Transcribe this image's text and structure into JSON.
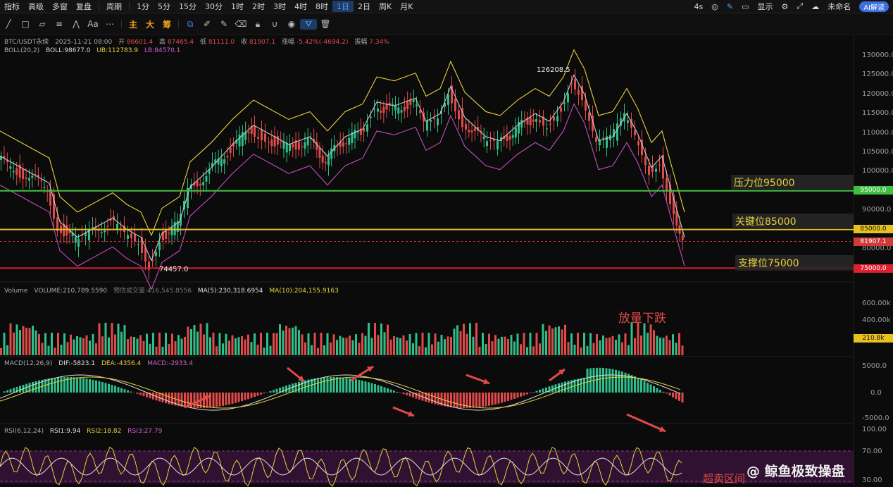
{
  "toolbar": {
    "items": [
      "指标",
      "高级",
      "多窗",
      "复盘",
      "周期",
      "1分",
      "5分",
      "15分",
      "30分",
      "1时",
      "2时",
      "3时",
      "4时",
      "8时",
      "1日",
      "2日",
      "周K",
      "月K"
    ],
    "active": "1日",
    "right": {
      "timer": "4s",
      "display": "显示",
      "unnamed": "未命名",
      "ai": "AI解读"
    }
  },
  "drawbar": {
    "labels": [
      "主",
      "大",
      "筹"
    ],
    "aa": "Aa"
  },
  "header": {
    "symbol": "BTC/USDT永续",
    "datetime": "2025-11-21 08:00",
    "open_label": "开",
    "open": "86601.4",
    "high_label": "高",
    "high": "87465.4",
    "low_label": "低",
    "low": "81111.0",
    "close_label": "收",
    "close": "81907.1",
    "change_label": "涨幅",
    "change": "-5.42%(-4694.2)",
    "amp_label": "振幅",
    "amp": "7.34%"
  },
  "boll": {
    "name": "BOLL(20,2)",
    "mid": "BOLL:98677.0",
    "ub": "UB:112783.9",
    "lb": "LB:84570.1"
  },
  "price_axis": [
    "130000.0",
    "125000.0",
    "120000.0",
    "115000.0",
    "110000.0",
    "105000.0",
    "100000.0",
    "95000.0",
    "90000.0",
    "85000.0",
    "80000.0"
  ],
  "annotations": {
    "high_mark": "126208.5",
    "low_mark": "74457.0",
    "resistance": "压力位95000",
    "key": "关键位85000",
    "support": "支撑位75000",
    "volume_note": "放量下跌",
    "oversold": "超卖区间"
  },
  "price_tags": {
    "resistance": "95000.0",
    "key": "85000.0",
    "current": "81907.1",
    "support": "75000.0"
  },
  "volume": {
    "title": "Volume",
    "value": "VOLUME:210,789.5590",
    "est": "预估成交量:416,545.8556",
    "ma5": "MA(5):230,318.6954",
    "ma10": "MA(10):204,155.9163",
    "axis": [
      "600.00k",
      "400.00k"
    ],
    "tag": "210.8k"
  },
  "macd": {
    "name": "MACD(12,26,9)",
    "dif": "DIF:-5823.1",
    "dea": "DEA:-4356.4",
    "macd": "MACD:-2933.4",
    "axis": [
      "5000.0",
      "0.0",
      "-5000.0"
    ]
  },
  "rsi": {
    "name": "RSI(6,12,24)",
    "r1": "RSI1:9.94",
    "r2": "RSI2:18.82",
    "r3": "RSI3:27.79",
    "axis": [
      "100.00",
      "70.00",
      "30.00"
    ]
  },
  "watermark": "@ 鲸鱼极致操盘",
  "colors": {
    "up": "#2fbf8a",
    "down": "#e24a4a",
    "boll_ub": "#e8d23c",
    "boll_mid": "#c8c8c8",
    "boll_lb": "#c050c0",
    "resistance": "#3fbf3f",
    "key": "#e8c020",
    "support": "#e02030"
  }
}
